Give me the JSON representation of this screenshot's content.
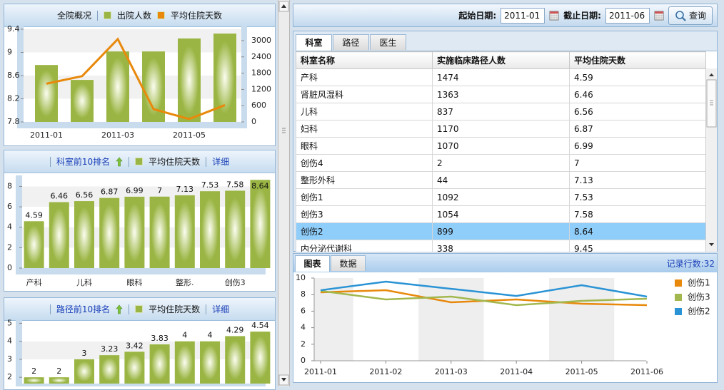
{
  "toolbar": {
    "start_label": "起始日期:",
    "start": "2011-01",
    "end_label": "截止日期:",
    "end": "2011-06",
    "button": "查询"
  },
  "table": {
    "tabs": [
      "科室",
      "路径",
      "医生"
    ],
    "active_tab": 0,
    "columns": [
      "科室名称",
      "实施临床路径人数",
      "平均住院天数"
    ],
    "rows": [
      [
        "产科",
        1474,
        4.59
      ],
      [
        "肾脏风湿科",
        1363,
        6.46
      ],
      [
        "儿科",
        837,
        6.56
      ],
      [
        "妇科",
        1170,
        6.87
      ],
      [
        "眼科",
        1070,
        6.99
      ],
      [
        "创伤4",
        2,
        7
      ],
      [
        "整形外科",
        44,
        7.13
      ],
      [
        "创伤1",
        1092,
        7.53
      ],
      [
        "创伤3",
        1054,
        7.58
      ],
      [
        "创伤2",
        899,
        8.64
      ],
      [
        "内分泌代谢科",
        338,
        9.45
      ]
    ],
    "selected_row": 9
  },
  "bottom": {
    "tabs": [
      "图表",
      "数据"
    ],
    "active_tab": 0,
    "record_count": "记录行数:32"
  },
  "chart_data": [
    {
      "type": "bar",
      "title": "全院概况",
      "categories": [
        "2011-01",
        null,
        "2011-03",
        null,
        "2011-05",
        null
      ],
      "series": [
        {
          "name": "出院人数",
          "color": "#9ab543",
          "values": [
            2100,
            1550,
            2600,
            2600,
            3080,
            3260
          ],
          "axis": "y2"
        },
        {
          "name": "平均住院天数",
          "color": "#e8890c",
          "type": "line",
          "values": [
            8.46,
            8.59,
            9.23,
            8.02,
            7.85,
            8.09
          ]
        }
      ],
      "ylim": [
        7.8,
        9.4
      ],
      "yticks": [
        7.8,
        8.2,
        8.6,
        9,
        9.4
      ],
      "y2lim": [
        0,
        3420
      ],
      "y2ticks": [
        0,
        600,
        1200,
        1800,
        2400,
        3000
      ]
    },
    {
      "type": "bar",
      "title": "科室前10排名",
      "detail_link": "详细",
      "categories": [
        "产科",
        null,
        "儿科",
        null,
        "眼科",
        null,
        "整形.",
        null,
        "创伤3",
        null
      ],
      "series": [
        {
          "name": "平均住院天数",
          "color": "#9ab543",
          "values": [
            4.59,
            6.46,
            6.56,
            6.87,
            6.99,
            7,
            7.13,
            7.53,
            7.58,
            8.64
          ]
        }
      ],
      "data_labels": true,
      "ylim": [
        0,
        8.8
      ],
      "yticks": [
        0,
        2,
        4,
        6,
        8
      ]
    },
    {
      "type": "bar",
      "title": "路径前10排名",
      "detail_link": "详细",
      "series": [
        {
          "name": "平均住院天数",
          "color": "#9ab543",
          "values": [
            2,
            2,
            3,
            3.23,
            3.42,
            3.83,
            4,
            4,
            4.29,
            4.54
          ]
        }
      ],
      "data_labels": true,
      "ylim": [
        1.65,
        5.1
      ],
      "yticks": [
        2,
        3,
        4,
        5
      ]
    },
    {
      "type": "line",
      "categories": [
        "2011-01",
        "2011-02",
        "2011-03",
        "2011-04",
        "2011-05",
        "2011-06"
      ],
      "series": [
        {
          "name": "创伤1",
          "color": "#e8890c",
          "values": [
            8.28,
            8.53,
            7.07,
            7.41,
            6.9,
            6.72
          ]
        },
        {
          "name": "创伤3",
          "color": "#a2b84e",
          "values": [
            8.45,
            7.41,
            7.76,
            6.72,
            7.24,
            7.5
          ]
        },
        {
          "name": "创伤2",
          "color": "#2a93d5",
          "values": [
            8.53,
            9.57,
            8.7,
            7.84,
            9.14,
            7.76
          ]
        }
      ],
      "ylim": [
        0,
        10
      ],
      "yticks": [
        0,
        2,
        4,
        6,
        8,
        10
      ],
      "legend": "right"
    }
  ]
}
